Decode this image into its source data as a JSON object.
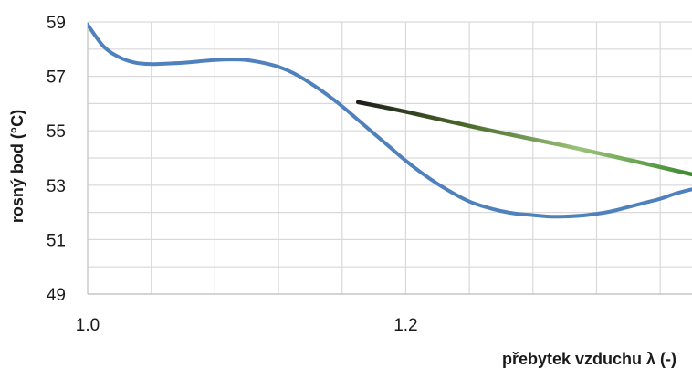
{
  "chart_data": {
    "type": "line",
    "title": "",
    "xlabel": "přebytek vzduchu λ (-)",
    "ylabel": "rosný bod (°C)",
    "xlim": [
      1.0,
      1.38
    ],
    "ylim": [
      49,
      59
    ],
    "x_tick_labels": [
      "1.0",
      "1.2"
    ],
    "x_ticks": [
      1.0,
      1.2
    ],
    "y_tick_labels": [
      "59",
      "57",
      "55",
      "53",
      "51",
      "49"
    ],
    "y_ticks": [
      59,
      57,
      55,
      53,
      51,
      49
    ],
    "grid": true,
    "grid_x_step": 0.04,
    "grid_y_step": 1,
    "series": [
      {
        "color": "#4f81bd",
        "x": [
          1.0,
          1.01,
          1.02,
          1.03,
          1.04,
          1.05,
          1.06,
          1.07,
          1.08,
          1.09,
          1.1,
          1.11,
          1.12,
          1.13,
          1.14,
          1.15,
          1.16,
          1.17,
          1.18,
          1.19,
          1.2,
          1.21,
          1.22,
          1.23,
          1.24,
          1.25,
          1.26,
          1.27,
          1.28,
          1.29,
          1.3,
          1.31,
          1.32,
          1.33,
          1.34,
          1.35,
          1.36,
          1.37,
          1.38
        ],
        "y": [
          58.9,
          58.1,
          57.7,
          57.5,
          57.45,
          57.47,
          57.5,
          57.55,
          57.6,
          57.62,
          57.6,
          57.5,
          57.35,
          57.1,
          56.75,
          56.35,
          55.9,
          55.4,
          54.9,
          54.4,
          53.9,
          53.45,
          53.05,
          52.7,
          52.4,
          52.2,
          52.05,
          51.95,
          51.9,
          51.85,
          51.85,
          51.88,
          51.95,
          52.05,
          52.2,
          52.35,
          52.5,
          52.7,
          52.85
        ]
      },
      {
        "colors": [
          "#1a1a1a",
          "#4a6a2a",
          "#9bc27a",
          "#3c8a2e"
        ],
        "x": [
          1.17,
          1.2,
          1.25,
          1.3,
          1.35,
          1.38
        ],
        "y": [
          56.05,
          55.7,
          55.05,
          54.45,
          53.8,
          53.4
        ]
      }
    ]
  }
}
